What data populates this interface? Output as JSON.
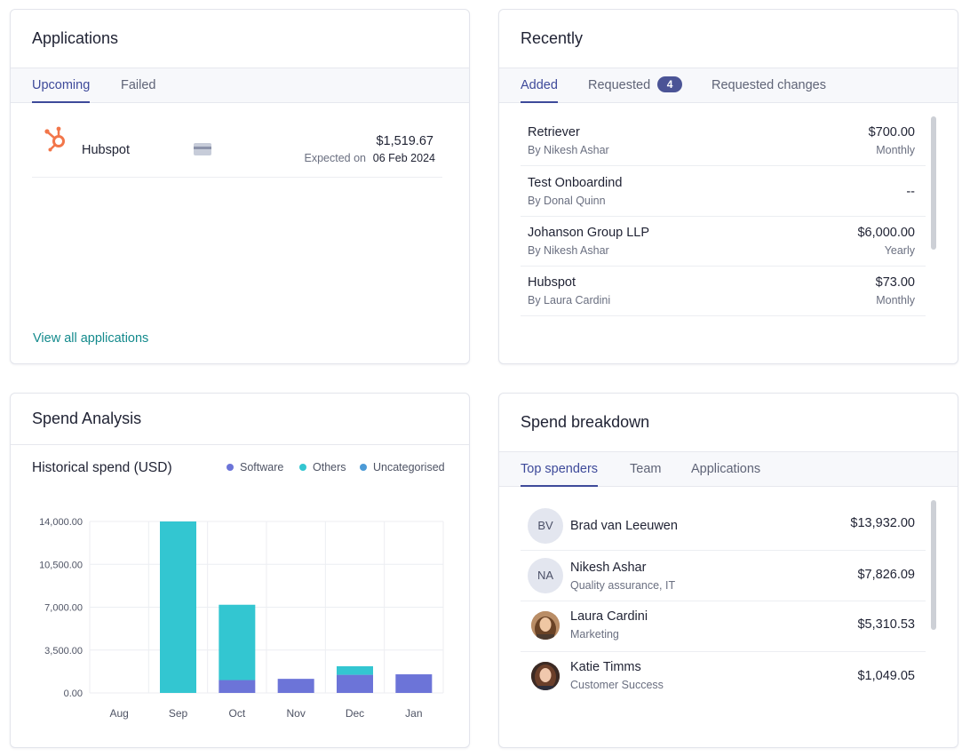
{
  "applications": {
    "title": "Applications",
    "tabs": [
      {
        "label": "Upcoming",
        "active": true
      },
      {
        "label": "Failed",
        "active": false
      }
    ],
    "items": [
      {
        "name": "Hubspot",
        "amount": "$1,519.67",
        "expected_label": "Expected on",
        "expected_date": "06 Feb 2024"
      }
    ],
    "view_all": "View all applications"
  },
  "recently": {
    "title": "Recently",
    "tabs": [
      {
        "label": "Added",
        "active": true
      },
      {
        "label": "Requested",
        "badge": "4",
        "active": false
      },
      {
        "label": "Requested changes",
        "active": false
      }
    ],
    "items": [
      {
        "name": "Retriever",
        "by": "By Nikesh Ashar",
        "amount": "$700.00",
        "frequency": "Monthly"
      },
      {
        "name": "Test Onboardind",
        "by": "By Donal Quinn",
        "amount": "--",
        "frequency": ""
      },
      {
        "name": "Johanson Group LLP",
        "by": "By Nikesh Ashar",
        "amount": "$6,000.00",
        "frequency": "Yearly"
      },
      {
        "name": "Hubspot",
        "by": "By Laura Cardini",
        "amount": "$73.00",
        "frequency": "Monthly"
      }
    ]
  },
  "spend_analysis": {
    "title": "Spend Analysis",
    "subtitle": "Historical spend (USD)"
  },
  "chart_data": {
    "type": "bar",
    "stacked": true,
    "title": "Historical spend (USD)",
    "categories": [
      "Aug",
      "Sep",
      "Oct",
      "Nov",
      "Dec",
      "Jan"
    ],
    "series": [
      {
        "name": "Software",
        "color": "#6c74d8",
        "values": [
          0,
          0,
          1050,
          1150,
          1480,
          1520
        ]
      },
      {
        "name": "Others",
        "color": "#33c6d1",
        "values": [
          0,
          14000,
          6150,
          0,
          700,
          0
        ]
      },
      {
        "name": "Uncategorised",
        "color": "#4c9ad6",
        "values": [
          0,
          0,
          0,
          0,
          0,
          0
        ]
      }
    ],
    "yticks": [
      "0.00",
      "3,500.00",
      "7,000.00",
      "10,500.00",
      "14,000.00"
    ],
    "ylim": [
      0,
      14000
    ],
    "grid": true,
    "legend": "top-right"
  },
  "spend_breakdown": {
    "title": "Spend breakdown",
    "tabs": [
      {
        "label": "Top spenders",
        "active": true
      },
      {
        "label": "Team",
        "active": false
      },
      {
        "label": "Applications",
        "active": false
      }
    ],
    "items": [
      {
        "initials": "BV",
        "name": "Brad van Leeuwen",
        "role": "",
        "amount": "$13,932.00"
      },
      {
        "initials": "NA",
        "name": "Nikesh Ashar",
        "role": "Quality assurance, IT",
        "amount": "$7,826.09"
      },
      {
        "initials": "",
        "name": "Laura Cardini",
        "role": "Marketing",
        "amount": "$5,310.53"
      },
      {
        "initials": "",
        "name": "Katie Timms",
        "role": "Customer Success",
        "amount": "$1,049.05"
      }
    ]
  }
}
